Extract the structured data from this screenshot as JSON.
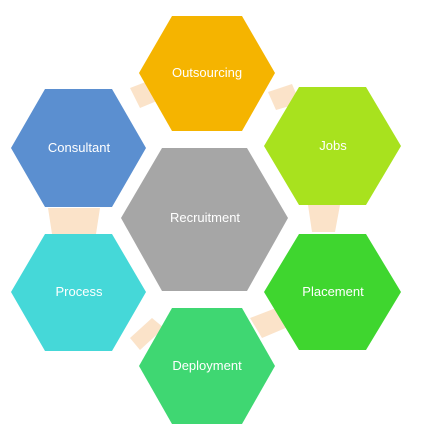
{
  "diagram": {
    "center": {
      "label": "Recruitment",
      "color": "#a6a6a6"
    },
    "nodes": [
      {
        "id": "outsourcing",
        "label": "Outsourcing",
        "color": "#f5b400"
      },
      {
        "id": "jobs",
        "label": "Jobs",
        "color": "#a8e21e"
      },
      {
        "id": "placement",
        "label": "Placement",
        "color": "#3fd62f"
      },
      {
        "id": "deployment",
        "label": "Deployment",
        "color": "#3fd772"
      },
      {
        "id": "process",
        "label": "Process",
        "color": "#45d8d8"
      },
      {
        "id": "consultant",
        "label": "Consultant",
        "color": "#5b8fd0"
      }
    ],
    "connector_color": "#fbe3c9"
  }
}
